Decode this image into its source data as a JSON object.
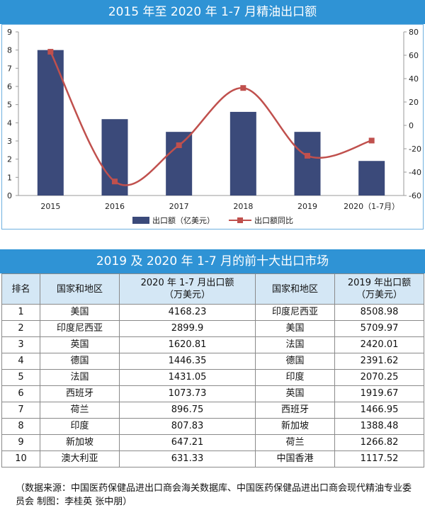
{
  "chart_title": "2015 年至 2020 年 1-7 月精油出口额",
  "chart_data": {
    "type": "bar",
    "categories": [
      "2015",
      "2016",
      "2017",
      "2018",
      "2019",
      "2020（1-7月）"
    ],
    "series": [
      {
        "name": "出口额（亿美元）",
        "type": "bar",
        "axis": "left",
        "color": "#3b4a7a",
        "values": [
          8.0,
          4.2,
          3.5,
          4.6,
          3.5,
          1.9
        ]
      },
      {
        "name": "出口额同比",
        "type": "line",
        "axis": "right",
        "color": "#c0504d",
        "values": [
          63,
          -48,
          -17,
          32,
          -26,
          -13
        ]
      }
    ],
    "y_left": {
      "min": 0,
      "max": 9,
      "ticks": [
        "0",
        "1",
        "2",
        "3",
        "4",
        "5",
        "6",
        "7",
        "8",
        "9"
      ]
    },
    "y_right": {
      "min": -60,
      "max": 80,
      "ticks": [
        "-60",
        "-40",
        "-20",
        "0",
        "20",
        "40",
        "60",
        "80"
      ]
    },
    "grid": false,
    "legend_position": "bottom"
  },
  "table_title": "2019 及 2020 年 1-7 月的前十大出口市场",
  "table": {
    "headers": [
      "排名",
      "国家和地区",
      "2020 年 1-7 月出口额（万美元）",
      "国家和地区",
      "2019 年出口额（万美元）"
    ],
    "rows": [
      [
        "1",
        "美国",
        "4168.23",
        "印度尼西亚",
        "8508.98"
      ],
      [
        "2",
        "印度尼西亚",
        "2899.9",
        "美国",
        "5709.97"
      ],
      [
        "3",
        "英国",
        "1620.81",
        "法国",
        "2420.01"
      ],
      [
        "4",
        "德国",
        "1446.35",
        "德国",
        "2391.62"
      ],
      [
        "5",
        "法国",
        "1431.05",
        "印度",
        "2070.25"
      ],
      [
        "6",
        "西班牙",
        "1073.73",
        "英国",
        "1919.67"
      ],
      [
        "7",
        "荷兰",
        "896.75",
        "西班牙",
        "1466.95"
      ],
      [
        "8",
        "印度",
        "807.83",
        "新加坡",
        "1388.48"
      ],
      [
        "9",
        "新加坡",
        "647.21",
        "荷兰",
        "1266.82"
      ],
      [
        "10",
        "澳大利亚",
        "631.33",
        "中国香港",
        "1117.52"
      ]
    ]
  },
  "source_note": "（数据来源：中国医药保健品进出口商会海关数据库、中国医药保健品进出口商会现代精油专业委员会  制图：李桂英  张中朋）"
}
